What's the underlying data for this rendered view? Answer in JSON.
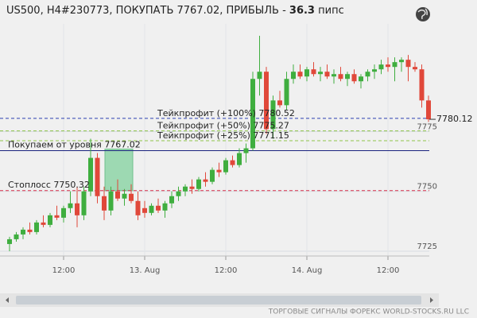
{
  "chart_data": {
    "type": "candlestick",
    "title": "US500, H4#230773, ПОКУПАТЬ 7767.02, ПРИБЫЛЬ -",
    "profit": 36.3,
    "profit_unit": "пипс",
    "footer": "ТОРГОВЫЕ СИГНАЛЫ ФОРЕКС WORLD-STOCKS.RU LLC",
    "ylim": [
      7723,
      7820
    ],
    "yticks": [
      7725,
      7750,
      7775
    ],
    "bull_color": "#3fae3f",
    "bear_color": "#e0483a",
    "categories": [
      null,
      null,
      null,
      null,
      null,
      null,
      null,
      null,
      "12:00",
      null,
      null,
      null,
      null,
      null,
      null,
      null,
      null,
      null,
      null,
      null,
      "13. Aug",
      null,
      null,
      null,
      null,
      null,
      null,
      null,
      null,
      null,
      null,
      null,
      "12:00",
      null,
      null,
      null,
      null,
      null,
      null,
      null,
      null,
      null,
      null,
      null,
      "14. Aug",
      null,
      null,
      null,
      null,
      null,
      null,
      null,
      null,
      null,
      null,
      null,
      "12:00",
      null,
      null,
      null,
      null,
      null,
      null
    ],
    "open": [
      7728,
      7730,
      7732,
      7734,
      7733,
      7737,
      7736,
      7740,
      7739,
      7743,
      7745,
      7740,
      7750,
      7764,
      7748,
      7742,
      7750,
      7747,
      7749,
      7746,
      7743,
      7741,
      7744,
      7742,
      7745,
      7748,
      7750,
      7752,
      7751,
      7755,
      7754,
      7759,
      7758,
      7763,
      7761,
      7766,
      7768,
      7797,
      7800,
      7776,
      7788,
      7786,
      7797,
      7800,
      7798,
      7801,
      7799,
      7800,
      7798,
      7799,
      7797,
      7799,
      7796,
      7798,
      7800,
      7801,
      7803,
      7802,
      7804,
      7805,
      7802,
      7801,
      7788
    ],
    "high": [
      7731,
      7733,
      7735,
      7737,
      7738,
      7740,
      7741,
      7744,
      7744,
      7750,
      7752,
      7752,
      7772,
      7766,
      7752,
      7752,
      7755,
      7751,
      7753,
      7750,
      7746,
      7745,
      7747,
      7746,
      7750,
      7752,
      7753,
      7755,
      7756,
      7758,
      7760,
      7762,
      7764,
      7765,
      7768,
      7770,
      7800,
      7815,
      7802,
      7790,
      7792,
      7800,
      7803,
      7803,
      7802,
      7804,
      7802,
      7803,
      7801,
      7802,
      7800,
      7801,
      7799,
      7801,
      7803,
      7805,
      7806,
      7806,
      7806,
      7807,
      7804,
      7803,
      7790
    ],
    "low": [
      7725,
      7729,
      7730,
      7732,
      7732,
      7735,
      7735,
      7738,
      7737,
      7741,
      7735,
      7738,
      7748,
      7745,
      7738,
      7740,
      7746,
      7744,
      7745,
      7738,
      7739,
      7740,
      7741,
      7739,
      7743,
      7746,
      7748,
      7749,
      7750,
      7752,
      7753,
      7756,
      7757,
      7760,
      7760,
      7762,
      7767,
      7790,
      7774,
      7772,
      7785,
      7784,
      7795,
      7797,
      7796,
      7798,
      7796,
      7797,
      7795,
      7796,
      7794,
      7795,
      7793,
      7796,
      7797,
      7799,
      7800,
      7796,
      7800,
      7796,
      7800,
      7785,
      7779
    ],
    "close": [
      7730,
      7732,
      7734,
      7733,
      7737,
      7736,
      7740,
      7739,
      7743,
      7745,
      7740,
      7750,
      7764,
      7748,
      7742,
      7750,
      7747,
      7749,
      7746,
      7740,
      7741,
      7744,
      7742,
      7745,
      7748,
      7750,
      7752,
      7751,
      7755,
      7754,
      7759,
      7758,
      7763,
      7761,
      7766,
      7768,
      7797,
      7800,
      7776,
      7788,
      7786,
      7797,
      7800,
      7798,
      7801,
      7799,
      7800,
      7798,
      7799,
      7797,
      7799,
      7796,
      7798,
      7800,
      7801,
      7803,
      7802,
      7804,
      7805,
      7802,
      7801,
      7788,
      7780.12
    ],
    "levels": [
      {
        "label": "Тейкпрофит (+100%)",
        "value": 7780.52,
        "color": "#2a3fb0",
        "style": "dashed",
        "side": "center"
      },
      {
        "label": "Тейкпрофит (+50%)",
        "value": 7775.27,
        "color": "#8fc34a",
        "style": "dashed",
        "side": "center"
      },
      {
        "label": "Тейкпрофит (+25%)",
        "value": 7771.15,
        "color": "#8fc34a",
        "style": "dashed",
        "side": "center"
      },
      {
        "label": "Покупаем от уровня",
        "value": 7767.02,
        "color": "#1a237e",
        "style": "solid",
        "side": "left"
      },
      {
        "label": "Стоплосс",
        "value": 7750.32,
        "color": "#d8304a",
        "style": "dashed",
        "side": "left"
      }
    ]
  }
}
